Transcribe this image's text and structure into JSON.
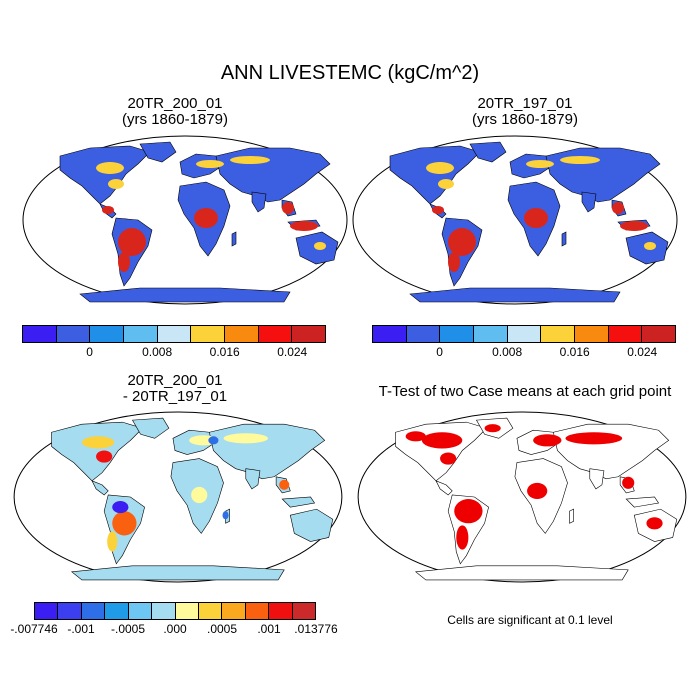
{
  "figure": {
    "title": "ANN LIVESTEMC (kgC/m^2)"
  },
  "panels": [
    {
      "id": "top-left",
      "title_line1": "20TR_200_01",
      "title_line2": "(yrs 1860-1879)"
    },
    {
      "id": "top-right",
      "title_line1": "20TR_197_01",
      "title_line2": "(yrs 1860-1879)"
    },
    {
      "id": "bottom-left",
      "title_line1": "20TR_200_01",
      "title_line2": "- 20TR_197_01"
    },
    {
      "id": "bottom-right",
      "title_line1": "T-Test of two Case means at each grid point",
      "title_line2": ""
    }
  ],
  "colorbar_levels": {
    "colors": [
      "#3b1ef2",
      "#3c5ee0",
      "#1f8fe8",
      "#5fbdf0",
      "#c8e6f5",
      "#fbd23a",
      "#f98a10",
      "#f50f0f",
      "#cc2222"
    ],
    "labels": [
      "0",
      "0.008",
      "0.016",
      "0.024"
    ]
  },
  "colorbar_diff": {
    "colors": [
      "#3b1ef2",
      "#3c3ff0",
      "#2e6fe8",
      "#1f9be8",
      "#6ec6f2",
      "#a5dcf0",
      "#fffa9c",
      "#fbd23a",
      "#f9a820",
      "#f96010",
      "#f01010",
      "#cc2a2a"
    ],
    "labels": [
      "-.007746",
      "-.001",
      "-.0005",
      ".000",
      ".0005",
      ".001",
      ".013776"
    ]
  },
  "ttest": {
    "note": "Cells are significant at 0.1 level",
    "color": "#ee0000"
  },
  "map_colors": {
    "ocean": "#ffffff",
    "land_base": "#3c5ee0",
    "land_diff_base": "#a5dcf0",
    "tropics_high": "#d9261c",
    "mid": "#fbd23a",
    "land_ttest": "#ffffff"
  }
}
